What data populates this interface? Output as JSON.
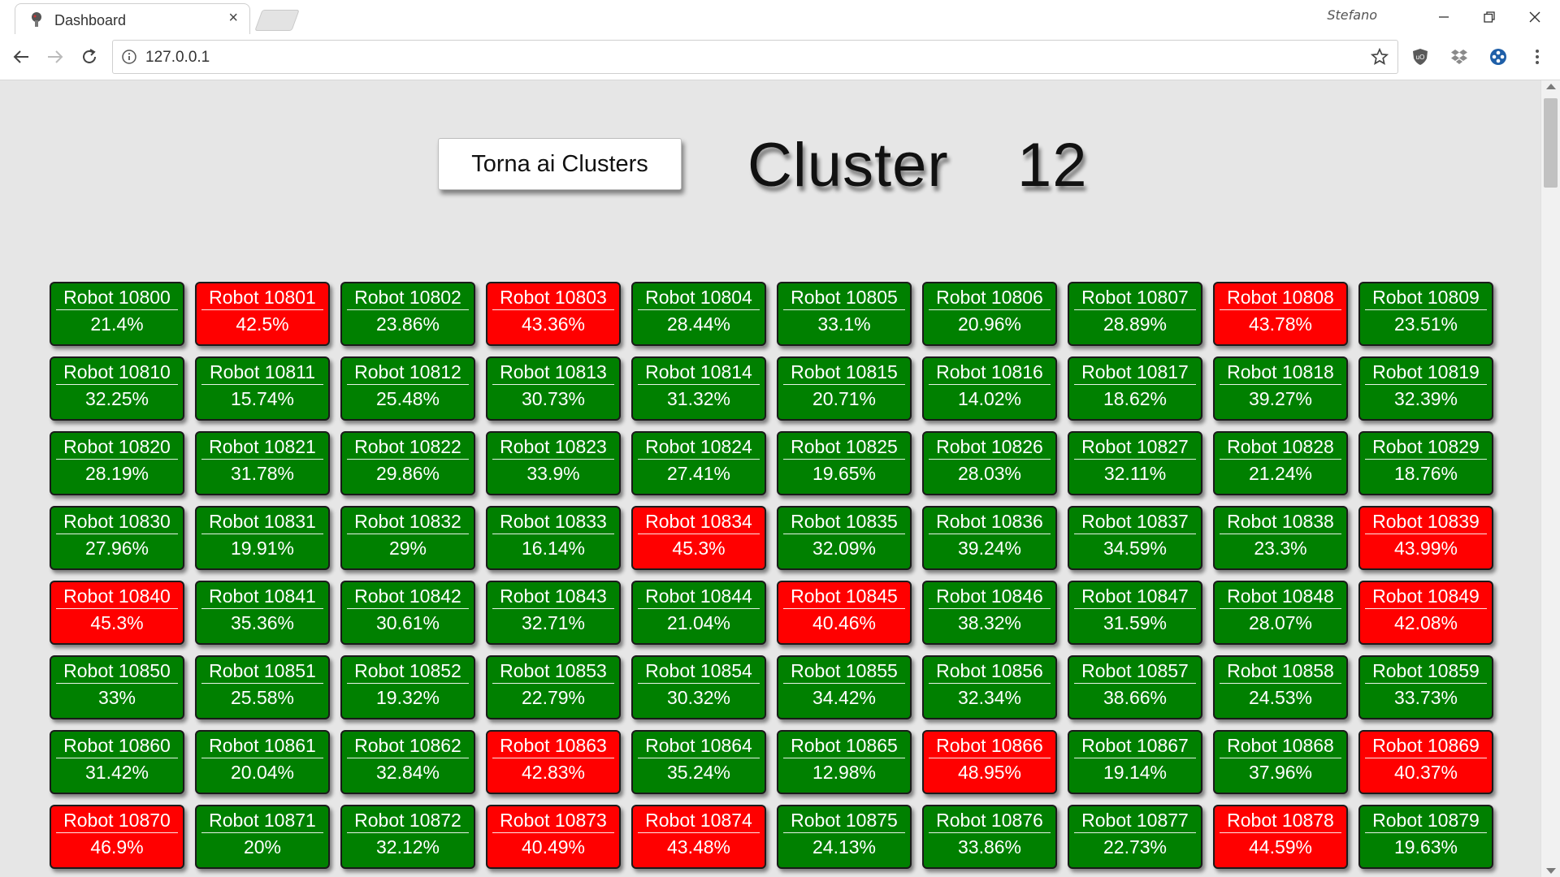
{
  "browser": {
    "tab_title": "Dashboard",
    "tab_close": "×",
    "user": "Stefano",
    "url": "127.0.0.1"
  },
  "page": {
    "back_button": "Torna ai Clusters",
    "title": "Cluster  12"
  },
  "colors": {
    "ok": "#008000",
    "alert": "#ff0000"
  },
  "robots": [
    {
      "name": "Robot 10800",
      "pct": "21.4%",
      "status": "ok"
    },
    {
      "name": "Robot 10801",
      "pct": "42.5%",
      "status": "alert"
    },
    {
      "name": "Robot 10802",
      "pct": "23.86%",
      "status": "ok"
    },
    {
      "name": "Robot 10803",
      "pct": "43.36%",
      "status": "alert"
    },
    {
      "name": "Robot 10804",
      "pct": "28.44%",
      "status": "ok"
    },
    {
      "name": "Robot 10805",
      "pct": "33.1%",
      "status": "ok"
    },
    {
      "name": "Robot 10806",
      "pct": "20.96%",
      "status": "ok"
    },
    {
      "name": "Robot 10807",
      "pct": "28.89%",
      "status": "ok"
    },
    {
      "name": "Robot 10808",
      "pct": "43.78%",
      "status": "alert"
    },
    {
      "name": "Robot 10809",
      "pct": "23.51%",
      "status": "ok"
    },
    {
      "name": "Robot 10810",
      "pct": "32.25%",
      "status": "ok"
    },
    {
      "name": "Robot 10811",
      "pct": "15.74%",
      "status": "ok"
    },
    {
      "name": "Robot 10812",
      "pct": "25.48%",
      "status": "ok"
    },
    {
      "name": "Robot 10813",
      "pct": "30.73%",
      "status": "ok"
    },
    {
      "name": "Robot 10814",
      "pct": "31.32%",
      "status": "ok"
    },
    {
      "name": "Robot 10815",
      "pct": "20.71%",
      "status": "ok"
    },
    {
      "name": "Robot 10816",
      "pct": "14.02%",
      "status": "ok"
    },
    {
      "name": "Robot 10817",
      "pct": "18.62%",
      "status": "ok"
    },
    {
      "name": "Robot 10818",
      "pct": "39.27%",
      "status": "ok"
    },
    {
      "name": "Robot 10819",
      "pct": "32.39%",
      "status": "ok"
    },
    {
      "name": "Robot 10820",
      "pct": "28.19%",
      "status": "ok"
    },
    {
      "name": "Robot 10821",
      "pct": "31.78%",
      "status": "ok"
    },
    {
      "name": "Robot 10822",
      "pct": "29.86%",
      "status": "ok"
    },
    {
      "name": "Robot 10823",
      "pct": "33.9%",
      "status": "ok"
    },
    {
      "name": "Robot 10824",
      "pct": "27.41%",
      "status": "ok"
    },
    {
      "name": "Robot 10825",
      "pct": "19.65%",
      "status": "ok"
    },
    {
      "name": "Robot 10826",
      "pct": "28.03%",
      "status": "ok"
    },
    {
      "name": "Robot 10827",
      "pct": "32.11%",
      "status": "ok"
    },
    {
      "name": "Robot 10828",
      "pct": "21.24%",
      "status": "ok"
    },
    {
      "name": "Robot 10829",
      "pct": "18.76%",
      "status": "ok"
    },
    {
      "name": "Robot 10830",
      "pct": "27.96%",
      "status": "ok"
    },
    {
      "name": "Robot 10831",
      "pct": "19.91%",
      "status": "ok"
    },
    {
      "name": "Robot 10832",
      "pct": "29%",
      "status": "ok"
    },
    {
      "name": "Robot 10833",
      "pct": "16.14%",
      "status": "ok"
    },
    {
      "name": "Robot 10834",
      "pct": "45.3%",
      "status": "alert"
    },
    {
      "name": "Robot 10835",
      "pct": "32.09%",
      "status": "ok"
    },
    {
      "name": "Robot 10836",
      "pct": "39.24%",
      "status": "ok"
    },
    {
      "name": "Robot 10837",
      "pct": "34.59%",
      "status": "ok"
    },
    {
      "name": "Robot 10838",
      "pct": "23.3%",
      "status": "ok"
    },
    {
      "name": "Robot 10839",
      "pct": "43.99%",
      "status": "alert"
    },
    {
      "name": "Robot 10840",
      "pct": "45.3%",
      "status": "alert"
    },
    {
      "name": "Robot 10841",
      "pct": "35.36%",
      "status": "ok"
    },
    {
      "name": "Robot 10842",
      "pct": "30.61%",
      "status": "ok"
    },
    {
      "name": "Robot 10843",
      "pct": "32.71%",
      "status": "ok"
    },
    {
      "name": "Robot 10844",
      "pct": "21.04%",
      "status": "ok"
    },
    {
      "name": "Robot 10845",
      "pct": "40.46%",
      "status": "alert"
    },
    {
      "name": "Robot 10846",
      "pct": "38.32%",
      "status": "ok"
    },
    {
      "name": "Robot 10847",
      "pct": "31.59%",
      "status": "ok"
    },
    {
      "name": "Robot 10848",
      "pct": "28.07%",
      "status": "ok"
    },
    {
      "name": "Robot 10849",
      "pct": "42.08%",
      "status": "alert"
    },
    {
      "name": "Robot 10850",
      "pct": "33%",
      "status": "ok"
    },
    {
      "name": "Robot 10851",
      "pct": "25.58%",
      "status": "ok"
    },
    {
      "name": "Robot 10852",
      "pct": "19.32%",
      "status": "ok"
    },
    {
      "name": "Robot 10853",
      "pct": "22.79%",
      "status": "ok"
    },
    {
      "name": "Robot 10854",
      "pct": "30.32%",
      "status": "ok"
    },
    {
      "name": "Robot 10855",
      "pct": "34.42%",
      "status": "ok"
    },
    {
      "name": "Robot 10856",
      "pct": "32.34%",
      "status": "ok"
    },
    {
      "name": "Robot 10857",
      "pct": "38.66%",
      "status": "ok"
    },
    {
      "name": "Robot 10858",
      "pct": "24.53%",
      "status": "ok"
    },
    {
      "name": "Robot 10859",
      "pct": "33.73%",
      "status": "ok"
    },
    {
      "name": "Robot 10860",
      "pct": "31.42%",
      "status": "ok"
    },
    {
      "name": "Robot 10861",
      "pct": "20.04%",
      "status": "ok"
    },
    {
      "name": "Robot 10862",
      "pct": "32.84%",
      "status": "ok"
    },
    {
      "name": "Robot 10863",
      "pct": "42.83%",
      "status": "alert"
    },
    {
      "name": "Robot 10864",
      "pct": "35.24%",
      "status": "ok"
    },
    {
      "name": "Robot 10865",
      "pct": "12.98%",
      "status": "ok"
    },
    {
      "name": "Robot 10866",
      "pct": "48.95%",
      "status": "alert"
    },
    {
      "name": "Robot 10867",
      "pct": "19.14%",
      "status": "ok"
    },
    {
      "name": "Robot 10868",
      "pct": "37.96%",
      "status": "ok"
    },
    {
      "name": "Robot 10869",
      "pct": "40.37%",
      "status": "alert"
    },
    {
      "name": "Robot 10870",
      "pct": "46.9%",
      "status": "alert"
    },
    {
      "name": "Robot 10871",
      "pct": "20%",
      "status": "ok"
    },
    {
      "name": "Robot 10872",
      "pct": "32.12%",
      "status": "ok"
    },
    {
      "name": "Robot 10873",
      "pct": "40.49%",
      "status": "alert"
    },
    {
      "name": "Robot 10874",
      "pct": "43.48%",
      "status": "alert"
    },
    {
      "name": "Robot 10875",
      "pct": "24.13%",
      "status": "ok"
    },
    {
      "name": "Robot 10876",
      "pct": "33.86%",
      "status": "ok"
    },
    {
      "name": "Robot 10877",
      "pct": "22.73%",
      "status": "ok"
    },
    {
      "name": "Robot 10878",
      "pct": "44.59%",
      "status": "alert"
    },
    {
      "name": "Robot 10879",
      "pct": "19.63%",
      "status": "ok"
    }
  ]
}
